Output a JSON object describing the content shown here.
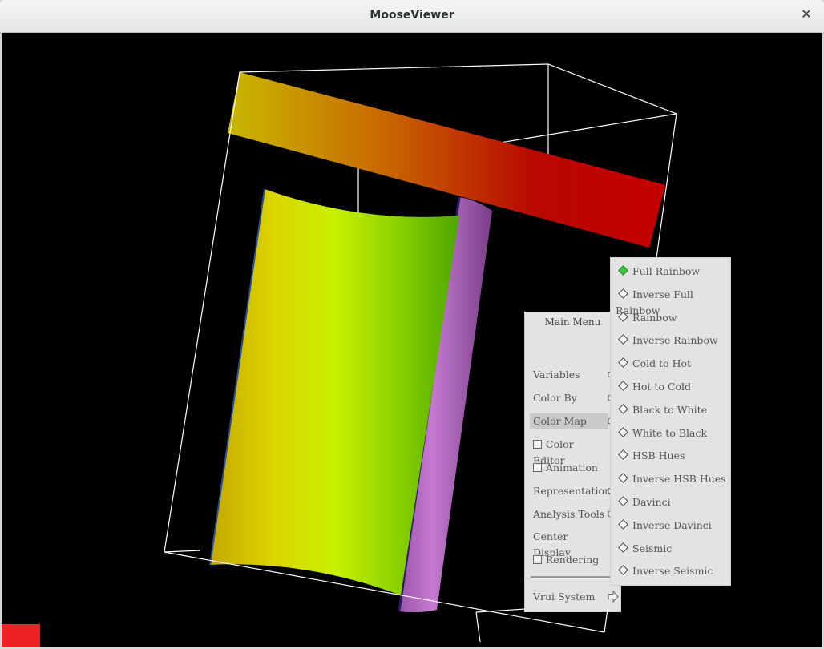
{
  "window": {
    "title": "MooseViewer",
    "close_glyph": "✕"
  },
  "main_menu": {
    "title": "Main Menu",
    "items": [
      {
        "label": "Variables",
        "type": "submenu"
      },
      {
        "label": "Color By",
        "type": "submenu"
      },
      {
        "label": "Color Map",
        "type": "submenu",
        "selected": true
      },
      {
        "label": "Color Editor",
        "type": "checkbox",
        "checked": false
      },
      {
        "label": "Animation",
        "type": "checkbox",
        "checked": false
      },
      {
        "label": "Representation",
        "type": "submenu"
      },
      {
        "label": "Analysis Tools",
        "type": "submenu"
      },
      {
        "label": "Center Display",
        "type": "action"
      },
      {
        "label": "Rendering",
        "type": "checkbox",
        "checked": false
      }
    ],
    "system_item": {
      "label": "Vrui System",
      "type": "submenu"
    }
  },
  "color_map_menu": {
    "items": [
      {
        "label": "Full Rainbow",
        "selected": true
      },
      {
        "label": "Inverse Full Rainbow",
        "selected": false
      },
      {
        "label": "Rainbow",
        "selected": false
      },
      {
        "label": "Inverse Rainbow",
        "selected": false
      },
      {
        "label": "Cold to Hot",
        "selected": false
      },
      {
        "label": "Hot to Cold",
        "selected": false
      },
      {
        "label": "Black to White",
        "selected": false
      },
      {
        "label": "White to Black",
        "selected": false
      },
      {
        "label": "HSB Hues",
        "selected": false
      },
      {
        "label": "Inverse HSB Hues",
        "selected": false
      },
      {
        "label": "Davinci",
        "selected": false
      },
      {
        "label": "Inverse Davinci",
        "selected": false
      },
      {
        "label": "Seismic",
        "selected": false
      },
      {
        "label": "Inverse Seismic",
        "selected": false
      }
    ]
  },
  "colors": {
    "background": "#000000",
    "indicator": "#ee2222",
    "selected_radio": "#3ec43e"
  }
}
